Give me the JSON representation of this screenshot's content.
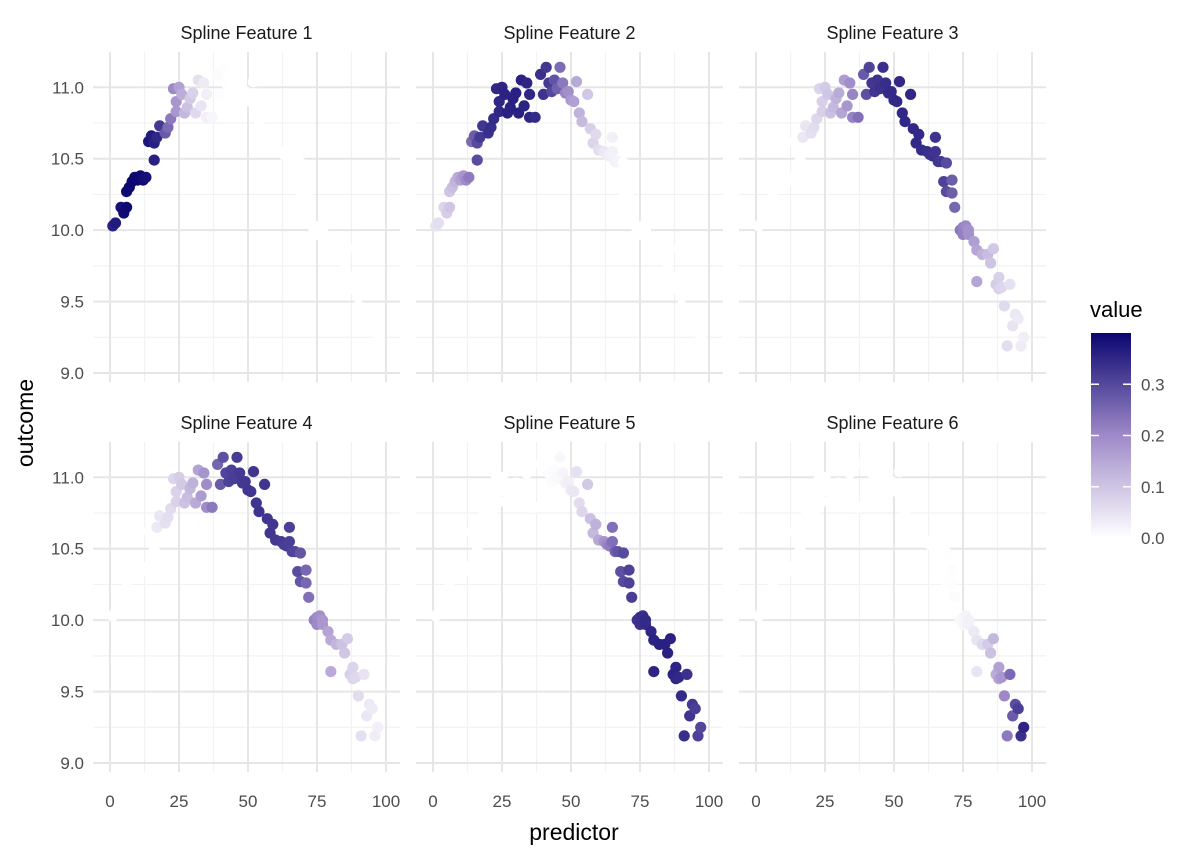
{
  "chart_data": {
    "type": "scatter",
    "layout": "facet_wrap",
    "xlabel": "predictor",
    "ylabel": "outcome",
    "xlim": [
      0,
      100
    ],
    "ylim": [
      9.0,
      11.1
    ],
    "x_ticks": [
      0,
      25,
      50,
      75,
      100
    ],
    "x_tick_labels": [
      "0",
      "25",
      "50",
      "75",
      "100"
    ],
    "y_ticks": [
      9.0,
      9.5,
      10.0,
      10.5,
      11.0
    ],
    "y_tick_labels": [
      "9.0",
      "9.5",
      "10.0",
      "10.5",
      "11.0"
    ],
    "grid": true,
    "legend": {
      "title": "value",
      "position": "right",
      "ticks": [
        0.0,
        0.1,
        0.2,
        0.3
      ],
      "tick_labels": [
        "0.0",
        "0.1",
        "0.2",
        "0.3"
      ],
      "range": [
        0.0,
        0.4
      ],
      "low_color": "#ffffff",
      "mid_color": "#9e8ac8",
      "high_color": "#0b0670"
    },
    "facets": [
      {
        "title": "Spline Feature 1",
        "knots": [
          0,
          0,
          17,
          42
        ],
        "peak": 0.4
      },
      {
        "title": "Spline Feature 2",
        "knots": [
          0,
          17,
          42,
          67
        ],
        "peak": 0.36
      },
      {
        "title": "Spline Feature 3",
        "knots": [
          17,
          42,
          67,
          100
        ],
        "peak": 0.35
      },
      {
        "title": "Spline Feature 4",
        "knots": [
          17,
          42,
          67,
          100
        ],
        "peak": 0.33
      },
      {
        "title": "Spline Feature 5",
        "knots": [
          42,
          67,
          100,
          100
        ],
        "peak": 0.36
      },
      {
        "title": "Spline Feature 6",
        "knots": [
          67,
          100,
          100,
          100
        ],
        "peak": 0.4
      }
    ],
    "points": [
      {
        "x": 1,
        "y": 10.03
      },
      {
        "x": 2,
        "y": 10.05
      },
      {
        "x": 4,
        "y": 10.16
      },
      {
        "x": 5,
        "y": 10.12
      },
      {
        "x": 6,
        "y": 10.16
      },
      {
        "x": 6,
        "y": 10.27
      },
      {
        "x": 7,
        "y": 10.3
      },
      {
        "x": 8,
        "y": 10.34
      },
      {
        "x": 9,
        "y": 10.37
      },
      {
        "x": 10,
        "y": 10.35
      },
      {
        "x": 11,
        "y": 10.38
      },
      {
        "x": 12,
        "y": 10.35
      },
      {
        "x": 13,
        "y": 10.37
      },
      {
        "x": 14,
        "y": 10.62
      },
      {
        "x": 15,
        "y": 10.66
      },
      {
        "x": 16,
        "y": 10.61
      },
      {
        "x": 16,
        "y": 10.49
      },
      {
        "x": 17,
        "y": 10.65
      },
      {
        "x": 18,
        "y": 10.73
      },
      {
        "x": 20,
        "y": 10.68
      },
      {
        "x": 21,
        "y": 10.72
      },
      {
        "x": 22,
        "y": 10.78
      },
      {
        "x": 23,
        "y": 10.99
      },
      {
        "x": 24,
        "y": 10.9
      },
      {
        "x": 24,
        "y": 10.83
      },
      {
        "x": 25,
        "y": 11.0
      },
      {
        "x": 26,
        "y": 10.95
      },
      {
        "x": 27,
        "y": 10.82
      },
      {
        "x": 28,
        "y": 10.86
      },
      {
        "x": 29,
        "y": 10.92
      },
      {
        "x": 30,
        "y": 10.96
      },
      {
        "x": 31,
        "y": 10.82
      },
      {
        "x": 32,
        "y": 11.05
      },
      {
        "x": 33,
        "y": 10.87
      },
      {
        "x": 34,
        "y": 11.03
      },
      {
        "x": 35,
        "y": 10.79
      },
      {
        "x": 35,
        "y": 10.95
      },
      {
        "x": 37,
        "y": 10.79
      },
      {
        "x": 39,
        "y": 11.09
      },
      {
        "x": 40,
        "y": 10.95
      },
      {
        "x": 41,
        "y": 11.14
      },
      {
        "x": 42,
        "y": 11.03
      },
      {
        "x": 43,
        "y": 10.97
      },
      {
        "x": 44,
        "y": 11.05
      },
      {
        "x": 45,
        "y": 10.99
      },
      {
        "x": 46,
        "y": 11.14
      },
      {
        "x": 47,
        "y": 11.03
      },
      {
        "x": 48,
        "y": 10.96
      },
      {
        "x": 49,
        "y": 10.97
      },
      {
        "x": 50,
        "y": 10.91
      },
      {
        "x": 51,
        "y": 10.9
      },
      {
        "x": 52,
        "y": 11.04
      },
      {
        "x": 53,
        "y": 10.82
      },
      {
        "x": 54,
        "y": 10.76
      },
      {
        "x": 56,
        "y": 10.95
      },
      {
        "x": 57,
        "y": 10.71
      },
      {
        "x": 58,
        "y": 10.61
      },
      {
        "x": 59,
        "y": 10.67
      },
      {
        "x": 60,
        "y": 10.56
      },
      {
        "x": 62,
        "y": 10.55
      },
      {
        "x": 63,
        "y": 10.53
      },
      {
        "x": 64,
        "y": 10.52
      },
      {
        "x": 65,
        "y": 10.55
      },
      {
        "x": 65,
        "y": 10.65
      },
      {
        "x": 66,
        "y": 10.48
      },
      {
        "x": 67,
        "y": 10.48
      },
      {
        "x": 68,
        "y": 10.34
      },
      {
        "x": 69,
        "y": 10.27
      },
      {
        "x": 69,
        "y": 10.47
      },
      {
        "x": 71,
        "y": 10.26
      },
      {
        "x": 71,
        "y": 10.35
      },
      {
        "x": 72,
        "y": 10.16
      },
      {
        "x": 74,
        "y": 10.0
      },
      {
        "x": 75,
        "y": 10.02
      },
      {
        "x": 75,
        "y": 9.97
      },
      {
        "x": 76,
        "y": 10.03
      },
      {
        "x": 77,
        "y": 10.0
      },
      {
        "x": 77,
        "y": 9.97
      },
      {
        "x": 79,
        "y": 9.92
      },
      {
        "x": 80,
        "y": 9.86
      },
      {
        "x": 80,
        "y": 9.64
      },
      {
        "x": 82,
        "y": 9.83
      },
      {
        "x": 84,
        "y": 9.83
      },
      {
        "x": 85,
        "y": 9.77
      },
      {
        "x": 86,
        "y": 9.87
      },
      {
        "x": 87,
        "y": 9.62
      },
      {
        "x": 88,
        "y": 9.59
      },
      {
        "x": 88,
        "y": 9.67
      },
      {
        "x": 89,
        "y": 9.6
      },
      {
        "x": 90,
        "y": 9.47
      },
      {
        "x": 91,
        "y": 9.19
      },
      {
        "x": 92,
        "y": 9.62
      },
      {
        "x": 93,
        "y": 9.33
      },
      {
        "x": 94,
        "y": 9.41
      },
      {
        "x": 95,
        "y": 9.38
      },
      {
        "x": 96,
        "y": 9.19
      },
      {
        "x": 97,
        "y": 9.25
      }
    ]
  }
}
